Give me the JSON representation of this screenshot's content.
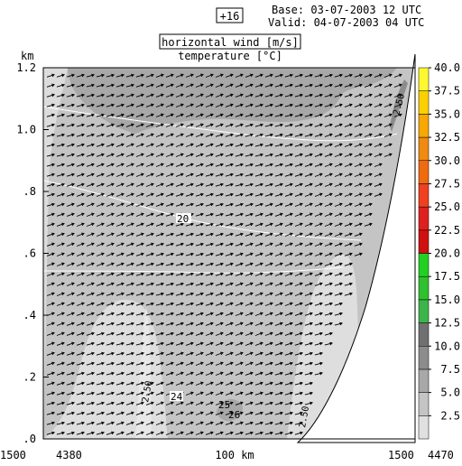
{
  "header": {
    "forecast_step": "+16",
    "base_label": "Base: 03-07-2003  12 UTC",
    "valid_label": "Valid: 04-07-2003  04 UTC",
    "title_line1": "horizontal wind [m/s]",
    "title_line2": "temperature [°C]"
  },
  "chart_data": {
    "type": "heatmap",
    "title": "horizontal wind [m/s]",
    "subtitle": "temperature [°C]",
    "ylabel": "km",
    "ylim": [
      0,
      1.2
    ],
    "y_ticks": [
      {
        "value": 0.0,
        "label": ".0"
      },
      {
        "value": 0.2,
        "label": ".2"
      },
      {
        "value": 0.4,
        "label": ".4"
      },
      {
        "value": 0.6,
        "label": ".6"
      },
      {
        "value": 0.8,
        "label": ".8"
      },
      {
        "value": 1.0,
        "label": "1.0"
      },
      {
        "value": 1.2,
        "label": "1.2"
      }
    ],
    "x_labels": {
      "left_height": "1500",
      "left_start": "4380",
      "center": "100 km",
      "right_height": "1500",
      "right_end": "4470"
    },
    "colorbar": {
      "levels": [
        2.5,
        5.0,
        7.5,
        10.0,
        12.5,
        15.0,
        17.5,
        20.0,
        22.5,
        25.0,
        27.5,
        30.0,
        32.5,
        35.0,
        37.5,
        40.0
      ],
      "labels": [
        "2.5",
        "5.0",
        "7.5",
        "10.0",
        "12.5",
        "15.0",
        "17.5",
        "20.0",
        "22.5",
        "25.0",
        "27.5",
        "30.0",
        "32.5",
        "35.0",
        "37.5",
        "40.0"
      ],
      "colors": [
        "#e0e0e0",
        "#c4c4c4",
        "#a8a8a8",
        "#8c8c8c",
        "#707070",
        "#3cb44b",
        "#2fc02f",
        "#22d022",
        "#d01010",
        "#e02020",
        "#f04020",
        "#f06a10",
        "#f08a10",
        "#f8a800",
        "#fcd000",
        "#fff830"
      ]
    },
    "temperature_contours": [
      {
        "value": 20,
        "label": "20"
      },
      {
        "value": 24,
        "label": "24"
      },
      {
        "value": 25,
        "label": "25"
      },
      {
        "value": 26,
        "label": "26"
      }
    ],
    "wind_speed_contour_labels": [
      "2.50",
      "2.50",
      "2.50",
      "2.50",
      "2.50"
    ]
  }
}
